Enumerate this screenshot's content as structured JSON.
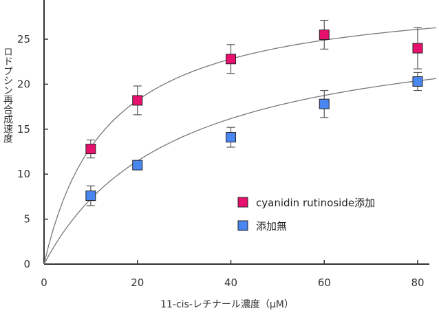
{
  "chart_data": {
    "type": "scatter",
    "title": "",
    "xlabel": "11-cis-レチナール濃度（μM）",
    "ylabel": "ロドプシン再合成速度",
    "xlim": [
      0,
      80
    ],
    "ylim": [
      0,
      30
    ],
    "xticks": [
      0,
      20,
      40,
      60,
      80
    ],
    "yticks": [
      0,
      5,
      10,
      15,
      20,
      25
    ],
    "grid": false,
    "legend_position": "bottom-right",
    "series": [
      {
        "name": "cyanidin rutinoside添加",
        "color": "#e8106e",
        "x": [
          10,
          20,
          40,
          60,
          80
        ],
        "y": [
          12.8,
          18.2,
          22.8,
          25.5,
          24.0
        ],
        "err": [
          1.0,
          1.6,
          1.6,
          1.6,
          2.3
        ]
      },
      {
        "name": "添加無",
        "color": "#4a86f0",
        "x": [
          10,
          20,
          40,
          60,
          80
        ],
        "y": [
          7.6,
          11.0,
          14.1,
          17.8,
          20.3
        ],
        "err": [
          1.1,
          0.0,
          1.1,
          1.5,
          1.0
        ]
      }
    ]
  }
}
